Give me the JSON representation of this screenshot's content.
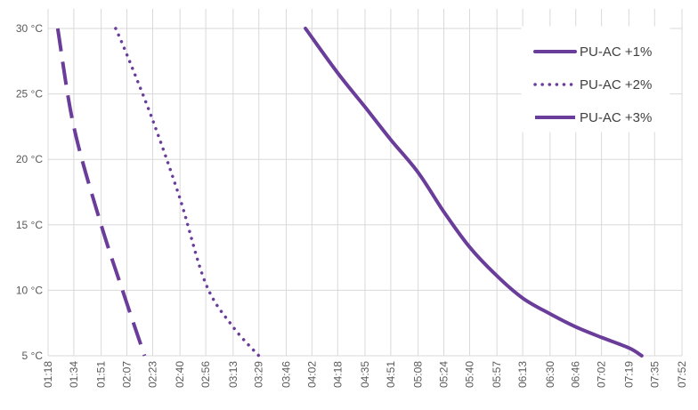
{
  "chart_data": {
    "type": "line",
    "title": "",
    "xlabel": "",
    "ylabel": "",
    "x_ticks": [
      "01:18",
      "01:34",
      "01:51",
      "02:07",
      "02:23",
      "02:40",
      "02:56",
      "03:13",
      "03:29",
      "03:46",
      "04:02",
      "04:18",
      "04:35",
      "04:51",
      "05:08",
      "05:24",
      "05:40",
      "05:57",
      "06:13",
      "06:30",
      "06:46",
      "07:02",
      "07:19",
      "07:35",
      "07:52"
    ],
    "y_ticks": [
      "5 °C",
      "10 °C",
      "15 °C",
      "20 °C",
      "25 °C",
      "30 °C"
    ],
    "xlim": [
      "01:18",
      "07:52"
    ],
    "ylim": [
      5,
      30
    ],
    "grid": "on",
    "legend_position": "top-right",
    "series": [
      {
        "name": "PU-AC +1%",
        "style": "solid",
        "color": "#6a3d9a",
        "x": [
          "03:58",
          "04:18",
          "04:35",
          "04:51",
          "05:08",
          "05:24",
          "05:40",
          "05:57",
          "06:13",
          "06:30",
          "06:46",
          "07:02",
          "07:19",
          "07:27"
        ],
        "y": [
          30,
          26.6,
          24,
          21.5,
          19,
          16,
          13.3,
          11.1,
          9.4,
          8.2,
          7.2,
          6.4,
          5.6,
          5
        ]
      },
      {
        "name": "PU-AC +2%",
        "style": "dotted",
        "color": "#6a3d9a",
        "x": [
          "02:00",
          "02:07",
          "02:23",
          "02:40",
          "02:56",
          "03:13",
          "03:29"
        ],
        "y": [
          30,
          28,
          23,
          17,
          10.5,
          7.2,
          5
        ]
      },
      {
        "name": "PU-AC +3%",
        "style": "dashed",
        "color": "#6a3d9a",
        "x": [
          "01:24",
          "01:34",
          "01:51",
          "02:07",
          "02:18"
        ],
        "y": [
          30,
          22.5,
          15,
          9,
          5
        ]
      }
    ]
  }
}
